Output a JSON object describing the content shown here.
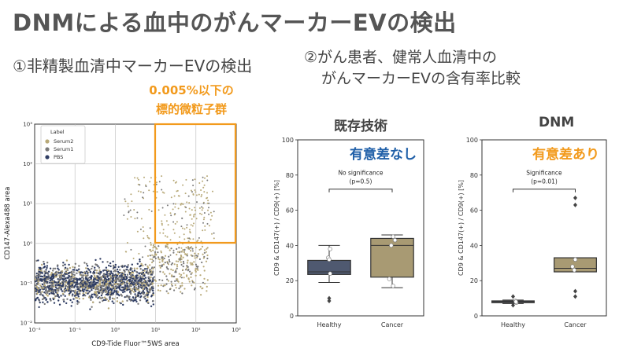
{
  "slide": {
    "title": "DNMによる血中のがんマーカーEVの検出",
    "section1": "①非精製血清中マーカーEVの検出",
    "section2_line1": "②がん患者、健常人血清中の",
    "section2_line2": "がんマーカーEVの含有率比較",
    "gate_label_line1": "0.005%以下の",
    "gate_label_line2": "標的微粒子群",
    "colors": {
      "accent_orange": "#f29a1c",
      "accent_blue": "#1f5fa8",
      "box_healthy": "#4f5970",
      "box_cancer": "#a89a73"
    }
  },
  "chart_data": [
    {
      "type": "scatter",
      "xlabel": "CD9-Tide Fluor™5WS area",
      "ylabel": "CD147-Alexa488 area",
      "xscale": "log",
      "yscale": "log",
      "xlim": [
        0.01,
        1000
      ],
      "ylim": [
        0.01,
        1000
      ],
      "x_ticks": [
        "10⁻²",
        "10⁻¹",
        "10⁰",
        "10¹",
        "10²",
        "10³"
      ],
      "y_ticks": [
        "10⁻²",
        "10⁻¹",
        "10⁰",
        "10¹",
        "10²",
        "10³"
      ],
      "grid": true,
      "legend_title": "Label",
      "legend_position": "top-left",
      "series": [
        {
          "name": "Serum2",
          "color": "#b8a978"
        },
        {
          "name": "Serum1",
          "color": "#7a7a7a"
        },
        {
          "name": "PBS",
          "color": "#2f3d63"
        }
      ],
      "gate": {
        "x": [
          10,
          1000
        ],
        "y": [
          1,
          1000
        ]
      }
    },
    {
      "type": "box",
      "title": "既存技術",
      "annotation": "有意差なし",
      "significance_line1": "No significance",
      "significance_line2": "(p=0.5)",
      "ylabel": "CD9 & CD147(+) / CD9(+) [%]",
      "ylim": [
        0,
        100
      ],
      "y_ticks": [
        "0",
        "20",
        "40",
        "60",
        "80",
        "100"
      ],
      "categories": [
        "Healthy",
        "Cancer"
      ],
      "boxes": [
        {
          "category": "Healthy",
          "whislo": 19,
          "q1": 23.5,
          "med": 25,
          "q3": 31.5,
          "whishi": 40,
          "fliers": [
            8.5,
            10
          ],
          "points": [
            38,
            33,
            32,
            24
          ]
        },
        {
          "category": "Cancer",
          "whislo": 16,
          "q1": 22,
          "med": 40,
          "q3": 44,
          "whishi": 46,
          "fliers": [],
          "points": [
            45,
            43,
            40,
            21,
            17
          ]
        }
      ]
    },
    {
      "type": "box",
      "title": "DNM",
      "annotation": "有意差あり",
      "significance_line1": "Significance",
      "significance_line2": "(p=0.01)",
      "ylabel": "CD9 & CD147(+) / CD9(+) [%]",
      "ylim": [
        0,
        100
      ],
      "y_ticks": [
        "0",
        "20",
        "40",
        "60",
        "80",
        "100"
      ],
      "categories": [
        "Healthy",
        "Cancer"
      ],
      "boxes": [
        {
          "category": "Healthy",
          "whislo": 7,
          "q1": 7.5,
          "med": 8,
          "q3": 8.5,
          "whishi": 9,
          "fliers": [
            11,
            6
          ],
          "points": [
            8,
            7.5,
            8.5,
            8
          ]
        },
        {
          "category": "Cancer",
          "whislo": 25,
          "q1": 25,
          "med": 27,
          "q3": 33,
          "whishi": 33,
          "fliers": [
            67,
            63,
            14,
            11
          ],
          "points": [
            32,
            28,
            26
          ]
        }
      ]
    }
  ]
}
